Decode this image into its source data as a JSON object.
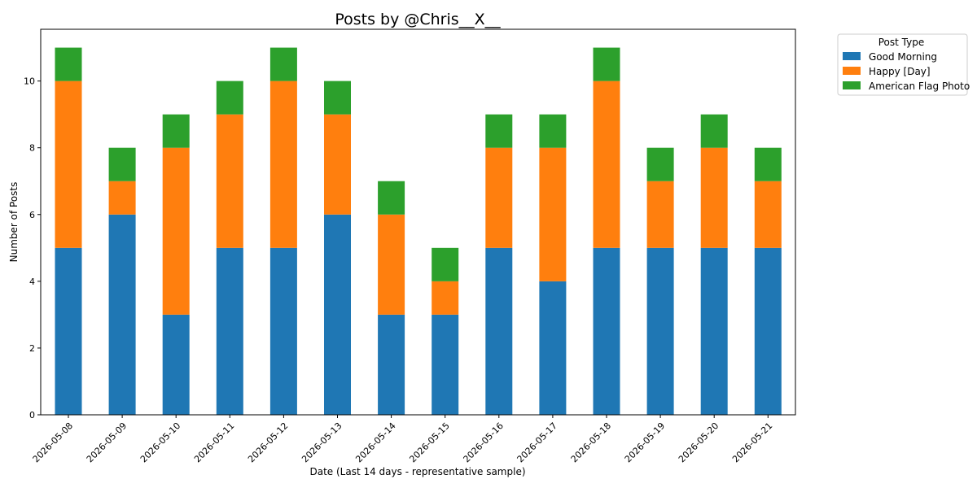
{
  "chart_data": {
    "type": "bar",
    "stacked": true,
    "title": "Posts by @Chris__X__",
    "xlabel": "Date (Last 14 days - representative sample)",
    "ylabel": "Number of Posts",
    "ylim": [
      0,
      11.55
    ],
    "yticks": [
      0,
      2,
      4,
      6,
      8,
      10
    ],
    "grid": false,
    "legend": {
      "title": "Post Type",
      "placement": "upper-right-outside"
    },
    "categories": [
      "2026-05-08",
      "2026-05-09",
      "2026-05-10",
      "2026-05-11",
      "2026-05-12",
      "2026-05-13",
      "2026-05-14",
      "2026-05-15",
      "2026-05-16",
      "2026-05-17",
      "2026-05-18",
      "2026-05-19",
      "2026-05-20",
      "2026-05-21"
    ],
    "series": [
      {
        "name": "Good Morning",
        "color": "#1f77b4",
        "values": [
          5,
          6,
          3,
          5,
          5,
          6,
          3,
          3,
          5,
          4,
          5,
          5,
          5,
          5
        ]
      },
      {
        "name": "Happy [Day]",
        "color": "#ff7f0e",
        "values": [
          5,
          1,
          5,
          4,
          5,
          3,
          3,
          1,
          3,
          4,
          5,
          2,
          3,
          2
        ]
      },
      {
        "name": "American Flag Photo",
        "color": "#2ca02c",
        "values": [
          1,
          1,
          1,
          1,
          1,
          1,
          1,
          1,
          1,
          1,
          1,
          1,
          1,
          1
        ]
      }
    ]
  }
}
